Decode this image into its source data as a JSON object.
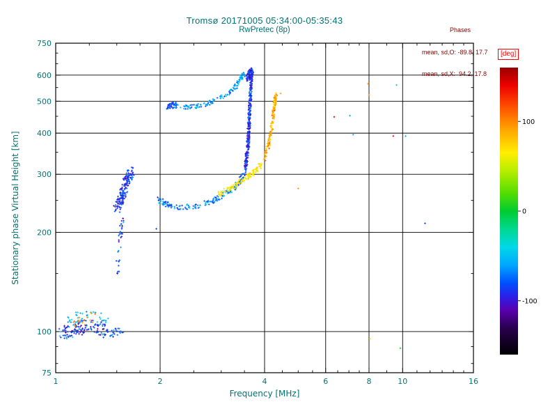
{
  "colors": {
    "axis_text": "#007373",
    "annotation_text": "#8B0000",
    "frame": "#000000",
    "background": "#FFFFFF",
    "deg_label": "#FF0000"
  },
  "chart_data": {
    "type": "scatter",
    "title": "Tromsø 20171005 05:34:00-05:35:43",
    "subtitle": "RwPretec (8p)",
    "xlabel": "Frequency [MHz]",
    "ylabel": "Stationary phase Virtual Height [km]",
    "x_scale": "log",
    "y_scale": "log",
    "xlim": [
      1,
      16
    ],
    "ylim": [
      75,
      750
    ],
    "x_ticks_labeled": [
      1,
      2,
      4,
      6,
      8,
      10,
      16
    ],
    "x_gridlines": [
      2,
      4,
      6,
      8,
      10
    ],
    "x_ticks_minor": [
      1.25,
      1.5,
      1.75,
      2.5,
      3,
      3.5,
      4.5,
      5,
      5.5,
      6.5,
      7,
      7.5,
      9,
      11,
      12,
      13,
      14,
      15
    ],
    "y_ticks_labeled": [
      750,
      600,
      500,
      400,
      300,
      200,
      100,
      75
    ],
    "y_gridlines": [
      600,
      500,
      400,
      300,
      200,
      100
    ],
    "y_ticks_minor": [
      700,
      650,
      550,
      450,
      350,
      250,
      150,
      90,
      80
    ],
    "grid": true,
    "legend_position": "none",
    "annotations": {
      "heading": "Phases",
      "line_o": "mean, sd,O: -89.8, 17.7",
      "line_x": "mean, sd,X:  94.2, 17.8"
    },
    "colorbar": {
      "label": "[deg]",
      "range": [
        -160,
        160
      ],
      "ticks": [
        100,
        0,
        -100
      ],
      "stops": [
        [
          -160,
          "#000000"
        ],
        [
          -130,
          "#2a0050"
        ],
        [
          -110,
          "#5a00b0"
        ],
        [
          -95,
          "#2b20e8"
        ],
        [
          -80,
          "#0050ff"
        ],
        [
          -60,
          "#00a8ff"
        ],
        [
          -40,
          "#00d8e8"
        ],
        [
          -20,
          "#00d890"
        ],
        [
          0,
          "#00cc30"
        ],
        [
          20,
          "#55dd00"
        ],
        [
          45,
          "#b8ee00"
        ],
        [
          65,
          "#ffee00"
        ],
        [
          90,
          "#ffa800"
        ],
        [
          115,
          "#ff5500"
        ],
        [
          140,
          "#ee0000"
        ],
        [
          160,
          "#990000"
        ]
      ]
    },
    "series": [
      {
        "name": "e-region-echo-blue",
        "n": 130,
        "phase": -85,
        "phase_sd": 18,
        "spread_f": 0.035,
        "spread_h": 0.045,
        "path": [
          [
            1.04,
            99
          ],
          [
            1.12,
            101
          ],
          [
            1.22,
            104
          ],
          [
            1.33,
            103
          ],
          [
            1.42,
            100
          ]
        ]
      },
      {
        "name": "e-region-echo-cyan",
        "n": 40,
        "phase": -55,
        "phase_sd": 12,
        "spread_f": 0.035,
        "spread_h": 0.04,
        "path": [
          [
            1.08,
            108
          ],
          [
            1.22,
            112
          ],
          [
            1.38,
            108
          ]
        ]
      },
      {
        "name": "e-region-echo-orange",
        "n": 16,
        "phase": 95,
        "phase_sd": 14,
        "spread_f": 0.04,
        "spread_h": 0.06,
        "path": [
          [
            1.1,
            104
          ],
          [
            1.3,
            112
          ]
        ]
      },
      {
        "name": "e-region-tail",
        "n": 20,
        "phase": -80,
        "phase_sd": 15,
        "spread_f": 0.02,
        "spread_h": 0.03,
        "path": [
          [
            1.44,
            99
          ],
          [
            1.56,
            101
          ]
        ]
      },
      {
        "name": "retardation-riser",
        "n": 34,
        "phase": -85,
        "phase_sd": 14,
        "spread_f": 0.013,
        "spread_h": 0.04,
        "path": [
          [
            1.5,
            142
          ],
          [
            1.52,
            172
          ],
          [
            1.54,
            200
          ],
          [
            1.56,
            220
          ]
        ]
      },
      {
        "name": "f-cusp-blob",
        "n": 170,
        "phase": -88,
        "phase_sd": 14,
        "spread_f": 0.022,
        "spread_h": 0.035,
        "path": [
          [
            1.5,
            237
          ],
          [
            1.55,
            258
          ],
          [
            1.61,
            287
          ],
          [
            1.66,
            306
          ]
        ]
      },
      {
        "name": "f-trace-lower-o",
        "n": 180,
        "phase": -68,
        "phase_sd": 16,
        "spread_f": 0.012,
        "spread_h": 0.02,
        "path": [
          [
            1.98,
            251
          ],
          [
            2.1,
            242
          ],
          [
            2.3,
            238
          ],
          [
            2.6,
            242
          ],
          [
            2.85,
            250
          ],
          [
            3.05,
            260
          ],
          [
            3.25,
            272
          ],
          [
            3.4,
            288
          ],
          [
            3.5,
            302
          ]
        ]
      },
      {
        "name": "f-trace-asymptote-o",
        "n": 330,
        "phase": -90,
        "phase_sd": 12,
        "spread_f": 0.009,
        "spread_h": 0.025,
        "path": [
          [
            3.52,
            310
          ],
          [
            3.58,
            360
          ],
          [
            3.61,
            430
          ],
          [
            3.64,
            520
          ],
          [
            3.66,
            600
          ],
          [
            3.68,
            622
          ]
        ]
      },
      {
        "name": "f-trace-top-cluster-o",
        "n": 60,
        "phase": -90,
        "phase_sd": 15,
        "spread_f": 0.012,
        "spread_h": 0.02,
        "path": [
          [
            3.55,
            585
          ],
          [
            3.62,
            605
          ],
          [
            3.68,
            618
          ]
        ]
      },
      {
        "name": "x-trace-lower-yellow",
        "n": 120,
        "phase": 66,
        "phase_sd": 9,
        "spread_f": 0.01,
        "spread_h": 0.018,
        "path": [
          [
            2.95,
            262
          ],
          [
            3.15,
            270
          ],
          [
            3.35,
            281
          ],
          [
            3.55,
            294
          ],
          [
            3.75,
            306
          ],
          [
            3.95,
            325
          ]
        ]
      },
      {
        "name": "x-trace-asymptote-orange",
        "n": 160,
        "phase": 88,
        "phase_sd": 12,
        "spread_f": 0.008,
        "spread_h": 0.02,
        "path": [
          [
            4.0,
            335
          ],
          [
            4.1,
            365
          ],
          [
            4.18,
            405
          ],
          [
            4.24,
            455
          ],
          [
            4.28,
            500
          ],
          [
            4.31,
            520
          ]
        ]
      },
      {
        "name": "upper-arc-second-reflection",
        "n": 130,
        "phase": -62,
        "phase_sd": 13,
        "spread_f": 0.012,
        "spread_h": 0.015,
        "path": [
          [
            2.12,
            488
          ],
          [
            2.3,
            479
          ],
          [
            2.5,
            481
          ],
          [
            2.72,
            492
          ],
          [
            2.95,
            507
          ],
          [
            3.15,
            528
          ],
          [
            3.3,
            553
          ],
          [
            3.42,
            585
          ],
          [
            3.48,
            612
          ]
        ]
      },
      {
        "name": "upper-arc-left-cluster",
        "n": 30,
        "phase": -85,
        "phase_sd": 10,
        "spread_f": 0.015,
        "spread_h": 0.02,
        "path": [
          [
            2.1,
            482
          ],
          [
            2.22,
            490
          ]
        ]
      }
    ],
    "points": [
      [
        1.95,
        205,
        -85
      ],
      [
        4.45,
        528,
        95
      ],
      [
        5.0,
        272,
        95
      ],
      [
        6.35,
        448,
        150
      ],
      [
        7.05,
        452,
        -60
      ],
      [
        7.2,
        396,
        -55
      ],
      [
        7.95,
        565,
        95
      ],
      [
        8.0,
        522,
        100
      ],
      [
        8.05,
        95,
        70
      ],
      [
        9.4,
        392,
        140
      ],
      [
        9.6,
        560,
        -50
      ],
      [
        9.85,
        89,
        0
      ],
      [
        10.2,
        392,
        -55
      ],
      [
        11.6,
        213,
        -85
      ]
    ]
  }
}
